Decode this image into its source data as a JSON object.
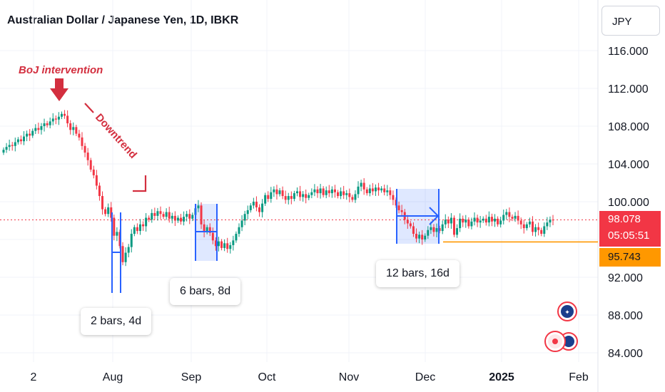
{
  "header": {
    "title": "Australian Dollar / Japanese Yen, 1D, IBKR"
  },
  "currency_button": {
    "label": "JPY"
  },
  "price_scale": {
    "current_price": "98.078",
    "countdown": "05:05:51",
    "support_price": "95.743"
  },
  "annotations": {
    "intervention": "BoJ intervention",
    "downtrend": "Downtrend",
    "range_1": "2 bars, 4d",
    "range_2": "6 bars, 8d",
    "range_3": "12 bars, 16d"
  },
  "colors": {
    "up": "#089981",
    "down": "#f23645",
    "annotation": "#d32f3f",
    "range": "#2962ff",
    "support": "#ff9800"
  },
  "chart_data": {
    "type": "candlestick",
    "title": "Australian Dollar / Japanese Yen, 1D, IBKR",
    "y_ticks": [
      84,
      88,
      92,
      96,
      100,
      104,
      108,
      112,
      116
    ],
    "y_tick_labels": [
      "84.000",
      "88.000",
      "92.000",
      "96.000",
      "100.000",
      "104.000",
      "108.000",
      "112.000",
      "116.000"
    ],
    "ylim": [
      83.5,
      118
    ],
    "x_tick_labels": [
      "2",
      "Aug",
      "Sep",
      "Oct",
      "Nov",
      "Dec",
      "2025",
      "Feb"
    ],
    "grid": true,
    "current_price": 98.078,
    "support_level": 95.743,
    "closes": [
      105.5,
      105.8,
      106.0,
      105.9,
      106.3,
      106.6,
      106.4,
      106.9,
      107.2,
      107.0,
      107.5,
      107.8,
      107.6,
      108.0,
      108.3,
      108.1,
      108.5,
      108.8,
      108.7,
      109.0,
      109.3,
      109.1,
      108.3,
      107.6,
      107.9,
      107.2,
      106.8,
      105.9,
      105.2,
      104.4,
      103.4,
      102.8,
      101.7,
      100.6,
      99.2,
      98.7,
      99.4,
      98.3,
      96.4,
      96.8,
      95.3,
      93.6,
      94.6,
      95.2,
      96.6,
      97.3,
      96.9,
      97.6,
      97.4,
      98.3,
      98.1,
      98.8,
      98.5,
      99.0,
      98.7,
      98.4,
      98.9,
      98.2,
      98.5,
      98.0,
      98.3,
      97.9,
      98.4,
      98.7,
      98.2,
      98.6,
      99.3,
      99.6,
      97.6,
      96.8,
      97.3,
      96.7,
      95.9,
      95.3,
      95.8,
      95.1,
      95.6,
      95.0,
      95.4,
      95.9,
      96.6,
      97.3,
      98.0,
      98.7,
      99.1,
      99.6,
      100.0,
      99.4,
      98.9,
      99.8,
      100.7,
      100.3,
      101.0,
      101.3,
      100.8,
      101.2,
      100.6,
      100.2,
      100.6,
      100.3,
      100.9,
      101.1,
      100.5,
      100.8,
      100.4,
      100.7,
      101.0,
      101.3,
      100.9,
      101.4,
      100.7,
      101.2,
      100.9,
      101.3,
      101.0,
      100.6,
      101.1,
      100.7,
      100.9,
      100.5,
      100.2,
      100.8,
      101.6,
      102.0,
      101.3,
      100.9,
      101.4,
      101.1,
      101.5,
      101.2,
      101.4,
      101.0,
      101.2,
      100.7,
      100.2,
      99.6,
      99.1,
      98.9,
      98.1,
      97.7,
      97.4,
      96.6,
      96.1,
      96.5,
      96.0,
      96.4,
      97.0,
      97.3,
      96.8,
      97.2,
      96.9,
      97.6,
      98.1,
      97.7,
      98.3,
      96.5,
      97.2,
      98.2,
      97.8,
      98.1,
      97.4,
      97.9,
      98.3,
      97.8,
      98.0,
      98.2,
      97.8,
      98.4,
      97.9,
      98.2,
      97.6,
      98.0,
      98.6,
      98.9,
      98.4,
      98.2,
      98.5,
      98.0,
      97.6,
      97.2,
      97.6,
      97.9,
      96.8,
      97.3,
      97.0,
      96.6,
      97.4,
      97.8,
      98.1,
      98.078
    ]
  }
}
